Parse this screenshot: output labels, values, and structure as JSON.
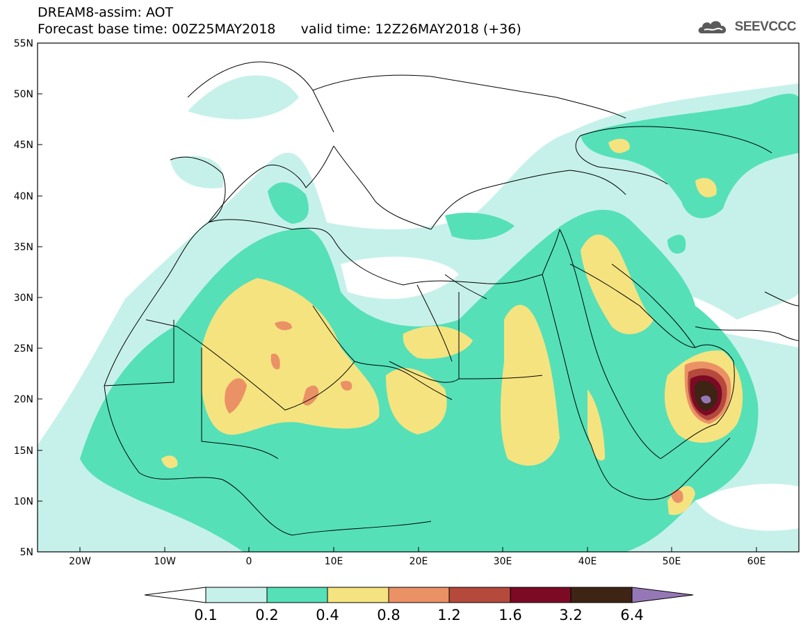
{
  "header": {
    "model_line": "DREAM8-assim: AOT",
    "base_label": "Forecast base time: 00Z25MAY2018",
    "valid_label": "valid time: 12Z26MAY2018 (+36)"
  },
  "logo": {
    "text": "SEEVCCC",
    "icon": "cloud-logo-icon"
  },
  "map": {
    "lon_range": [
      -25,
      65
    ],
    "lat_range": [
      5,
      55
    ],
    "lat_ticks": [
      "55N",
      "50N",
      "45N",
      "40N",
      "35N",
      "30N",
      "25N",
      "20N",
      "15N",
      "10N",
      "5N"
    ],
    "lon_ticks": [
      "20W",
      "10W",
      "0",
      "10E",
      "20E",
      "30E",
      "40E",
      "50E",
      "60E"
    ]
  },
  "colorbar": {
    "labels": [
      "0.1",
      "0.2",
      "0.4",
      "0.8",
      "1.2",
      "1.6",
      "3.2",
      "6.4"
    ],
    "colors": [
      "#ffffff",
      "#c6f1ea",
      "#55e0b8",
      "#f5e380",
      "#eb9166",
      "#b4493c",
      "#7c0a25",
      "#3d2414",
      "#9677b6"
    ]
  },
  "colors": {
    "coastline": "#000000"
  }
}
